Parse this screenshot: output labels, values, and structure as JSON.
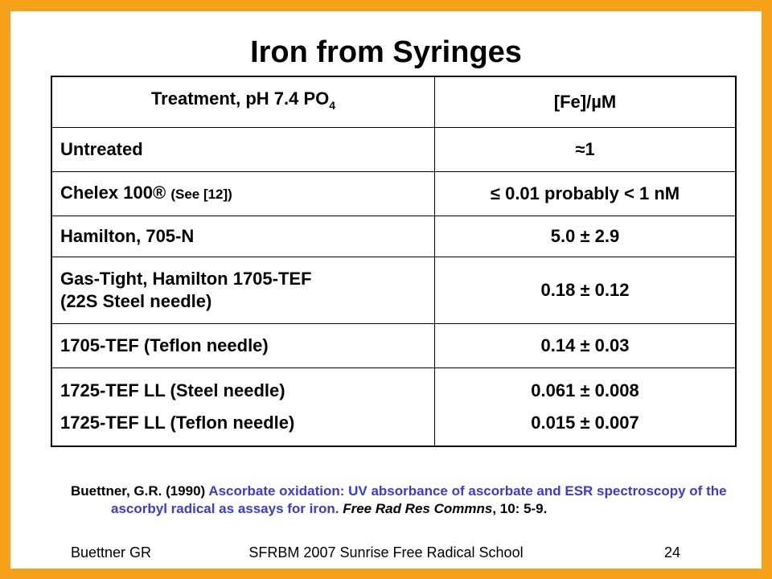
{
  "title": "Iron from Syringes",
  "table": {
    "header": {
      "col1_main": "Treatment, pH 7.4  PO",
      "col1_sub": "4",
      "col2": "[Fe]/µM"
    },
    "rows": [
      {
        "treatment": "Untreated",
        "fe": "≈1"
      },
      {
        "treatment_main": "Chelex 100®",
        "treatment_note": "(See [12])",
        "fe": "≤ 0.01  probably < 1 nM"
      },
      {
        "treatment": "Hamilton, 705-N",
        "fe": "5.0 ± 2.9"
      },
      {
        "treatment_line1": "Gas-Tight, Hamilton 1705-TEF",
        "treatment_line2": "(22S Steel needle)",
        "fe": "0.18 ± 0.12"
      },
      {
        "treatment": "1705-TEF (Teflon needle)",
        "fe": "0.14 ± 0.03"
      },
      {
        "treatment_line1": "1725-TEF LL (Steel needle)",
        "treatment_line2": "1725-TEF LL (Teflon needle)",
        "fe_line1": "0.061 ± 0.008",
        "fe_line2": "0.015 ± 0.007"
      }
    ]
  },
  "reference": {
    "authors": "Buettner, G.R. (1990) ",
    "title_text": "Ascorbate oxidation:  UV absorbance of ascorbate and ESR spectroscopy of the ascorbyl radical as assays for iron.  ",
    "journal": "Free Rad Res Commns",
    "volume": ", 10: 5-9."
  },
  "footer": {
    "left": "Buettner  GR",
    "center": "SFRBM 2007   Sunrise Free Radical School",
    "right": "24"
  },
  "colors": {
    "frame": "#f7a11b",
    "reference_blue": "#3a3ad6"
  }
}
